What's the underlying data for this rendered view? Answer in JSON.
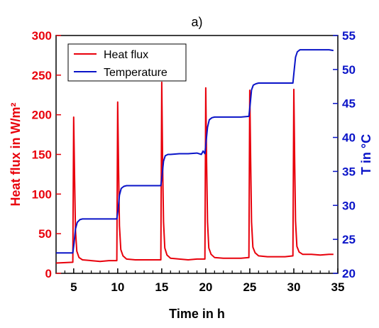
{
  "chart_data": {
    "type": "line",
    "title": "a)",
    "xlabel": "Time in h",
    "ylabel_left": "Heat flux in W/m²",
    "ylabel_right": "T in °C",
    "xlim": [
      3,
      35
    ],
    "ylim_left": [
      0,
      300
    ],
    "ylim_right": [
      20,
      55
    ],
    "x_ticks": [
      5,
      10,
      15,
      20,
      25,
      30,
      35
    ],
    "y_left_ticks": [
      0,
      50,
      100,
      150,
      200,
      250,
      300
    ],
    "y_right_ticks": [
      20,
      25,
      30,
      35,
      40,
      45,
      50,
      55
    ],
    "grid": false,
    "legend_position": "top-left",
    "colors": {
      "heat_flux": "#e8000b",
      "temperature": "#0a14c8"
    },
    "series": [
      {
        "name": "Heat flux",
        "axis": "left",
        "x": [
          3.0,
          4.9,
          5.0,
          5.1,
          5.2,
          5.35,
          5.6,
          6.0,
          7.0,
          8.0,
          9.0,
          9.9,
          10.0,
          10.1,
          10.2,
          10.35,
          10.6,
          11.0,
          12.0,
          13.0,
          14.0,
          14.9,
          15.0,
          15.1,
          15.2,
          15.35,
          15.6,
          16.0,
          17.0,
          18.0,
          19.0,
          19.9,
          20.0,
          20.1,
          20.2,
          20.35,
          20.6,
          21.0,
          22.0,
          23.0,
          24.0,
          24.9,
          25.0,
          25.1,
          25.2,
          25.35,
          25.6,
          26.0,
          27.0,
          28.0,
          29.0,
          29.9,
          30.0,
          30.1,
          30.2,
          30.35,
          30.6,
          31.0,
          32.0,
          33.0,
          34.0,
          34.5
        ],
        "values": [
          13,
          14,
          197,
          120,
          55,
          28,
          20,
          17,
          16,
          15,
          16,
          16,
          216,
          130,
          60,
          30,
          22,
          18,
          17,
          17,
          17,
          17,
          241,
          140,
          65,
          32,
          23,
          19,
          18,
          17,
          18,
          18,
          234,
          140,
          65,
          32,
          24,
          20,
          19,
          19,
          19,
          20,
          231,
          140,
          65,
          33,
          26,
          22,
          21,
          21,
          21,
          22,
          232,
          140,
          66,
          34,
          27,
          24,
          24,
          23,
          24,
          24
        ]
      },
      {
        "name": "Temperature",
        "axis": "right",
        "x": [
          3.0,
          4.9,
          5.05,
          5.2,
          5.4,
          5.7,
          6.0,
          7.0,
          8.0,
          9.0,
          9.9,
          10.05,
          10.2,
          10.4,
          10.7,
          11.0,
          12.0,
          13.0,
          14.0,
          14.9,
          15.05,
          15.2,
          15.4,
          15.7,
          16.0,
          17.0,
          18.0,
          19.0,
          19.5,
          19.7,
          19.9,
          20.05,
          20.2,
          20.4,
          20.7,
          21.0,
          22.0,
          23.0,
          24.0,
          24.9,
          25.05,
          25.2,
          25.4,
          25.7,
          26.0,
          27.0,
          28.0,
          29.0,
          29.9,
          30.05,
          30.2,
          30.4,
          30.7,
          31.0,
          32.0,
          33.0,
          34.0,
          34.5
        ],
        "values": [
          23.0,
          23.0,
          24.5,
          26.5,
          27.5,
          27.9,
          28.0,
          28.0,
          28.0,
          28.0,
          28.0,
          29.5,
          31.5,
          32.5,
          32.8,
          32.9,
          32.9,
          32.9,
          32.9,
          32.9,
          34.5,
          36.5,
          37.3,
          37.5,
          37.5,
          37.6,
          37.6,
          37.7,
          37.5,
          38.0,
          37.6,
          39.5,
          41.5,
          42.6,
          42.9,
          43.0,
          43.0,
          43.0,
          43.0,
          43.1,
          45.0,
          47.0,
          47.7,
          47.9,
          48.0,
          48.0,
          48.0,
          48.0,
          48.0,
          50.0,
          51.8,
          52.6,
          52.9,
          52.9,
          52.9,
          52.9,
          52.9,
          52.8
        ]
      }
    ]
  }
}
